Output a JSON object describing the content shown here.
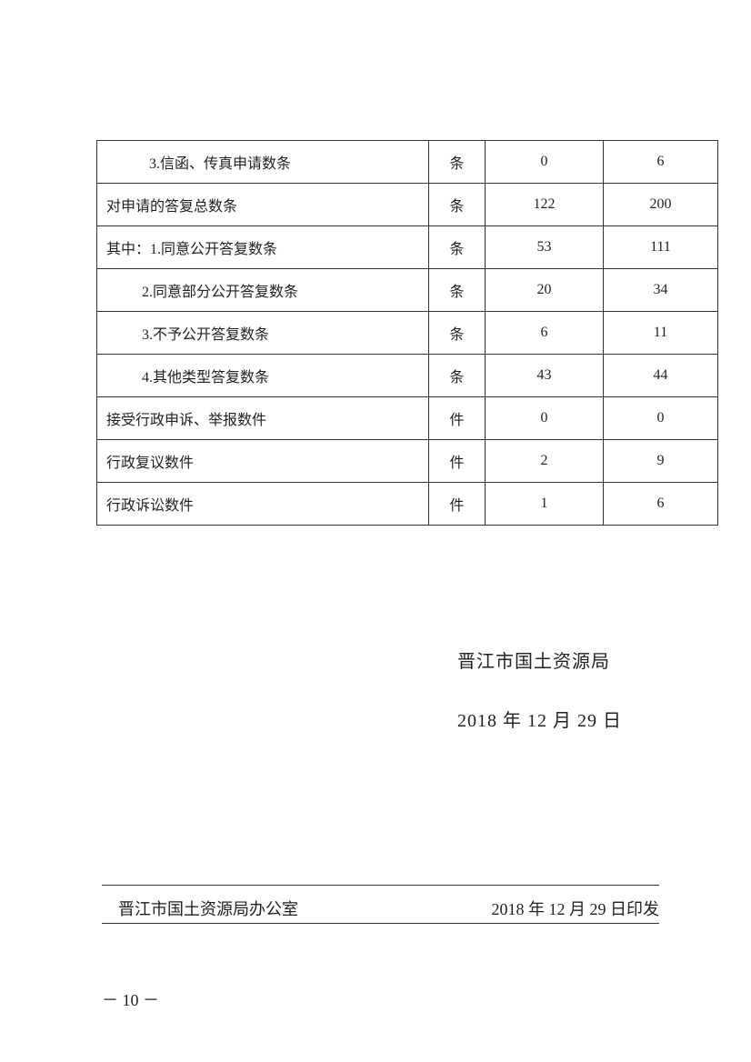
{
  "table": {
    "rows": [
      {
        "label": "3.信函、传真申请数条",
        "unit": "条",
        "v1": "0",
        "v2": "6",
        "indent": 1
      },
      {
        "label": "对申请的答复总数条",
        "unit": "条",
        "v1": "122",
        "v2": "200",
        "indent": 0
      },
      {
        "label": "其中：1.同意公开答复数条",
        "unit": "条",
        "v1": "53",
        "v2": "111",
        "indent": 0
      },
      {
        "label": "2.同意部分公开答复数条",
        "unit": "条",
        "v1": "20",
        "v2": "34",
        "indent": 2
      },
      {
        "label": "3.不予公开答复数条",
        "unit": "条",
        "v1": "6",
        "v2": "11",
        "indent": 2
      },
      {
        "label": "4.其他类型答复数条",
        "unit": "条",
        "v1": "43",
        "v2": "44",
        "indent": 2
      },
      {
        "label": "接受行政申诉、举报数件",
        "unit": "件",
        "v1": "0",
        "v2": "0",
        "indent": 0
      },
      {
        "label": "行政复议数件",
        "unit": "件",
        "v1": "2",
        "v2": "9",
        "indent": 0
      },
      {
        "label": "行政诉讼数件",
        "unit": "件",
        "v1": "1",
        "v2": "6",
        "indent": 0
      }
    ]
  },
  "signature": {
    "org": "晋江市国土资源局",
    "date": "2018 年 12 月 29 日"
  },
  "footer": {
    "issuer": "晋江市国土资源局办公室",
    "issued": "2018 年 12 月 29 日印发"
  },
  "page_number": "－ 10 －"
}
